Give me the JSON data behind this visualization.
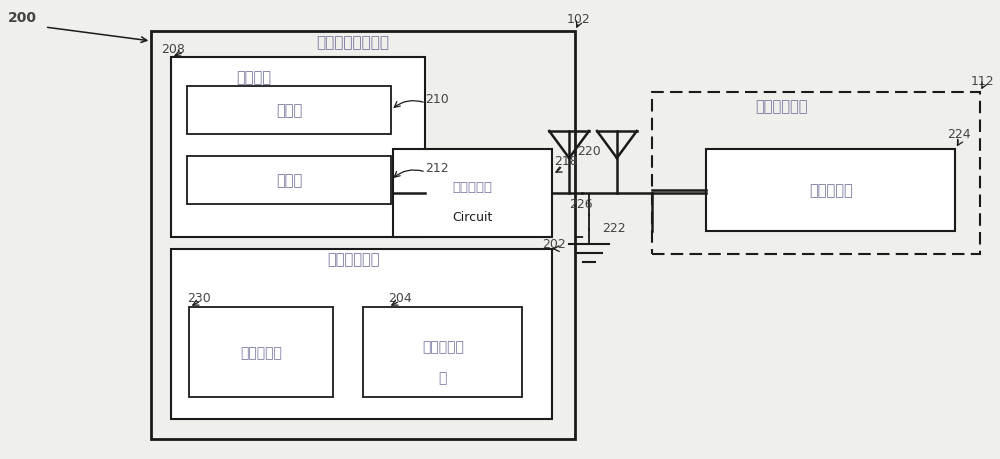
{
  "bg_color": "#efefeb",
  "label_200": "200",
  "label_102": "102",
  "label_112": "112",
  "label_208": "208",
  "label_210": "210",
  "label_212": "212",
  "label_218": "218",
  "label_220": "220",
  "label_222": "222",
  "label_224": "224",
  "label_226": "226",
  "label_230": "230",
  "label_202": "202",
  "label_204": "204",
  "text_main_box": "可训练收发器装置",
  "text_control": "控制电路",
  "text_processor": "处理器",
  "text_memory": "存储器",
  "text_transceiver": "收发器电路",
  "text_transceiver2": "Circuit",
  "text_ui": "用户界面元件",
  "text_user_input_line": "用户输入线",
  "text_user_input_device_1": "用户输入设",
  "text_user_input_device_2": "备",
  "text_remote_system": "远程电子系统",
  "text_remote_transceiver": "收发器电路",
  "line_color": "#1a1a1a",
  "box_fill": "#ffffff",
  "label_color_num": "#444444",
  "label_color_chinese": "#7878a0"
}
